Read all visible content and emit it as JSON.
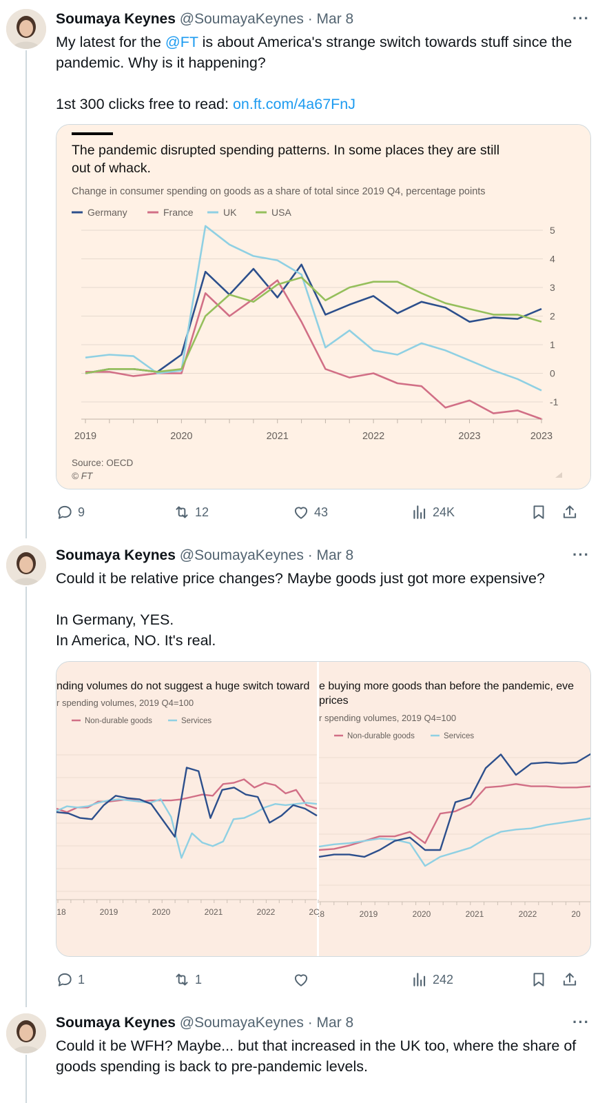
{
  "tweets": [
    {
      "name": "Soumaya Keynes",
      "handle": "@SoumayaKeynes",
      "dot": "·",
      "date": "Mar 8",
      "more": "···",
      "line1_pre": "My latest for the ",
      "line1_mention": "@FT",
      "line1_post": " is about America's strange switch towards stuff since the pandemic. Why is it happening?",
      "line2_pre": "1st 300 clicks free to read: ",
      "line2_link": "on.ft.com/4a67FnJ",
      "stats": {
        "replies": "9",
        "reposts": "12",
        "likes": "43",
        "views": "24K"
      }
    },
    {
      "name": "Soumaya Keynes",
      "handle": "@SoumayaKeynes",
      "dot": "·",
      "date": "Mar 8",
      "more": "···",
      "line1": "Could it be relative price changes? Maybe goods just got more expensive?",
      "line2": "In Germany, YES.",
      "line3": "In America, NO. It's real.",
      "stats": {
        "replies": "1",
        "reposts": "1",
        "likes": "",
        "views": "242"
      }
    },
    {
      "name": "Soumaya Keynes",
      "handle": "@SoumayaKeynes",
      "dot": "·",
      "date": "Mar 8",
      "more": "···",
      "line1": "Could it be WFH? Maybe... but that increased in the UK too, where the share of goods spending is back to pre-pandemic levels."
    }
  ],
  "icons": [
    "reply-icon",
    "repost-icon",
    "like-icon",
    "views-icon",
    "bookmark-icon",
    "share-icon"
  ],
  "chart_data": [
    {
      "type": "line",
      "title": "The pandemic disrupted spending patterns. In some places they are still out of whack.",
      "subtitle": "Change in consumer spending on goods as a share of total since 2019 Q4, percentage points",
      "x_tick_labels": [
        "2019",
        "2020",
        "2021",
        "2022",
        "2023",
        "2023"
      ],
      "x": [
        "2019Q1",
        "2019Q2",
        "2019Q3",
        "2019Q4",
        "2020Q1",
        "2020Q2",
        "2020Q3",
        "2020Q4",
        "2021Q1",
        "2021Q2",
        "2021Q3",
        "2021Q4",
        "2022Q1",
        "2022Q2",
        "2022Q3",
        "2022Q4",
        "2023Q1",
        "2023Q2",
        "2023Q3",
        "2023Q4"
      ],
      "ylim": [
        -1.5,
        5.3
      ],
      "y_ticks": [
        5,
        4,
        3,
        2,
        1,
        0,
        -1
      ],
      "y_tick_labels": [
        "5",
        "4",
        "3",
        "2",
        "1",
        "0",
        "-1"
      ],
      "grid": true,
      "legend_position": "top-left",
      "source": "Source: OECD",
      "copyright": "© FT",
      "series": [
        {
          "name": "Germany",
          "color": "#2c4f8c",
          "values": [
            0,
            0.15,
            0.15,
            0.05,
            0.65,
            3.55,
            2.75,
            3.65,
            2.65,
            3.8,
            2.05,
            2.4,
            2.7,
            2.1,
            2.5,
            2.3,
            1.8,
            1.95,
            1.9,
            2.25
          ]
        },
        {
          "name": "France",
          "color": "#d16f86",
          "values": [
            0.05,
            0.05,
            -0.1,
            0,
            0,
            2.8,
            2.0,
            2.6,
            3.25,
            1.8,
            0.15,
            -0.15,
            0,
            -0.35,
            -0.45,
            -1.2,
            -0.95,
            -1.4,
            -1.3,
            -1.6
          ]
        },
        {
          "name": "UK",
          "color": "#8fd0e3",
          "values": [
            0.55,
            0.65,
            0.6,
            0,
            0.1,
            5.15,
            4.5,
            4.1,
            3.95,
            3.45,
            0.9,
            1.5,
            0.8,
            0.65,
            1.05,
            0.8,
            0.45,
            0.1,
            -0.2,
            -0.6
          ]
        },
        {
          "name": "USA",
          "color": "#95bf5c",
          "values": [
            0,
            0.15,
            0.15,
            0.05,
            0.15,
            2.0,
            2.75,
            2.5,
            3.1,
            3.35,
            2.55,
            3.0,
            3.2,
            3.2,
            2.8,
            2.45,
            2.25,
            2.05,
            2.05,
            1.8
          ]
        }
      ]
    },
    {
      "type": "line",
      "title": "nding volumes do not suggest a huge switch toward",
      "subtitle": "r spending volumes, 2019 Q4=100",
      "x_tick_labels": [
        "18",
        "2019",
        "2020",
        "2021",
        "2022",
        "2C"
      ],
      "grid": true,
      "legend_position": "top-left",
      "series": [
        {
          "name": "Non-durable goods",
          "color": "#d16f86",
          "values": [
            0,
            -0.3,
            0.1,
            0.1,
            0.6,
            0.6,
            0.7,
            0.8,
            0.6,
            0.7,
            0.7,
            0.7,
            0.8,
            1.0,
            1.2,
            1.1,
            2.1,
            2.2,
            2.5,
            1.8,
            2.2,
            2.0,
            1.3,
            1.6,
            0.3,
            0.0
          ]
        },
        {
          "name": "Services",
          "color": "#8fd0e3",
          "values": [
            -0.2,
            0.2,
            0.1,
            0.2,
            0.5,
            0.7,
            0.8,
            0.7,
            0.6,
            0.5,
            0.8,
            -0.7,
            -4.2,
            -2.1,
            -2.9,
            -3.2,
            -2.8,
            -0.9,
            -0.8,
            -0.4,
            0.1,
            0.4,
            0.3,
            0.4,
            0.5,
            0.4
          ]
        },
        {
          "name": "",
          "color": "#2c4f8c",
          "values": [
            -0.3,
            -0.4,
            -0.8,
            -0.9,
            0.3,
            1.1,
            0.9,
            0.8,
            0.4,
            -1.0,
            -2.4,
            3.5,
            3.2,
            -0.8,
            1.6,
            1.8,
            1.2,
            1.0,
            -1.2,
            -0.6,
            0.3,
            0.0,
            -0.6
          ]
        }
      ]
    },
    {
      "type": "line",
      "title": "e buying more goods than before the pandemic, eve",
      "title2": "prices",
      "subtitle": "r spending volumes, 2019 Q4=100",
      "x_tick_labels": [
        ".8",
        "2019",
        "2020",
        "2021",
        "2022",
        "20"
      ],
      "grid": true,
      "legend_position": "top-left",
      "series": [
        {
          "name": "Non-durable goods",
          "color": "#d16f86",
          "values": [
            0,
            0.1,
            0.4,
            0.8,
            1.2,
            1.2,
            1.6,
            0.6,
            3.2,
            3.4,
            4.0,
            5.5,
            5.6,
            5.8,
            5.6,
            5.6,
            5.5,
            5.5,
            5.6
          ]
        },
        {
          "name": "Services",
          "color": "#8fd0e3",
          "values": [
            0.3,
            0.5,
            0.6,
            0.8,
            1.0,
            0.9,
            0.6,
            -1.4,
            -0.6,
            -0.2,
            0.2,
            1.0,
            1.6,
            1.8,
            1.9,
            2.2,
            2.4,
            2.6,
            2.8
          ]
        },
        {
          "name": "",
          "color": "#2c4f8c",
          "values": [
            -0.6,
            -0.4,
            -0.4,
            -0.6,
            0.0,
            0.8,
            1.1,
            0.0,
            0.0,
            4.2,
            4.6,
            7.2,
            8.4,
            6.6,
            7.6,
            7.7,
            7.6,
            7.7,
            8.5
          ]
        }
      ]
    }
  ]
}
